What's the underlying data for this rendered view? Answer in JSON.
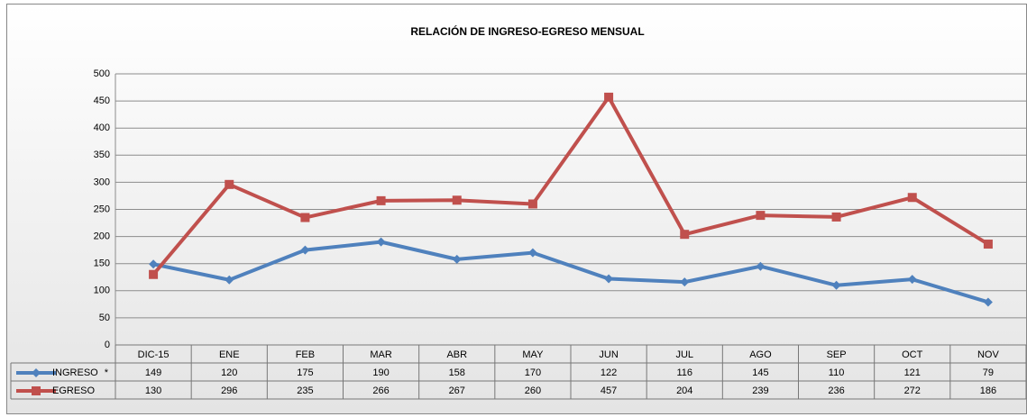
{
  "chart_data": {
    "type": "line",
    "title": "RELACIÓN DE INGRESO-EGRESO MENSUAL",
    "categories": [
      "DIC-15",
      "ENE",
      "FEB",
      "MAR",
      "ABR",
      "MAY",
      "JUN",
      "JUL",
      "AGO",
      "SEP",
      "OCT",
      "NOV"
    ],
    "series": [
      {
        "name": "INGRESO",
        "annotation": "*",
        "color": "#4f81bd",
        "marker": "diamond",
        "values": [
          149,
          120,
          175,
          190,
          158,
          170,
          122,
          116,
          145,
          110,
          121,
          79
        ]
      },
      {
        "name": "EGRESO",
        "color": "#c0504d",
        "marker": "square",
        "values": [
          130,
          296,
          235,
          266,
          267,
          260,
          457,
          204,
          239,
          236,
          272,
          186
        ]
      }
    ],
    "ylim": [
      0,
      500
    ],
    "yticks": [
      0,
      50,
      100,
      150,
      200,
      250,
      300,
      350,
      400,
      450,
      500
    ],
    "grid": true,
    "data_table": true
  }
}
